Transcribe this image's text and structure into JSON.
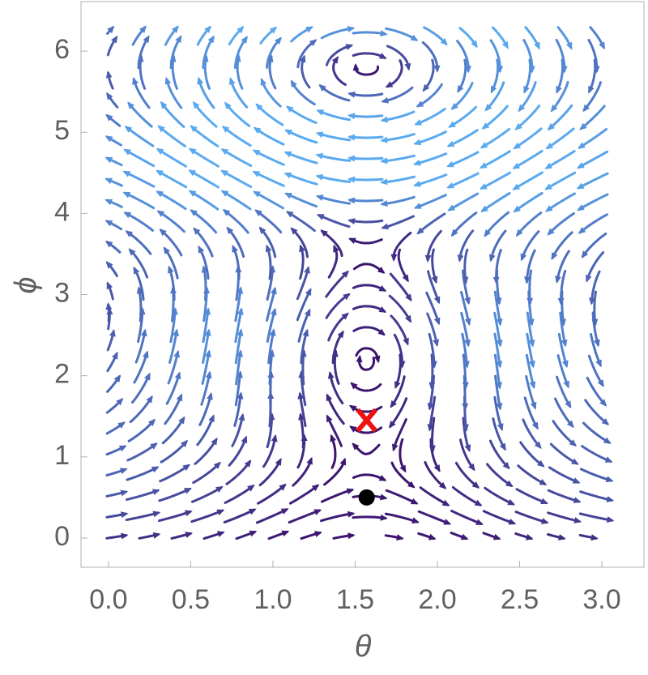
{
  "chart_data": {
    "type": "streamplot",
    "x_label": "θ",
    "y_label": "ϕ",
    "xlim": [
      -0.167,
      3.256
    ],
    "ylim": [
      -0.36,
      6.61
    ],
    "xticks": [
      {
        "value": 0,
        "label": "0.0"
      },
      {
        "value": 0.5,
        "label": "0.5"
      },
      {
        "value": 1,
        "label": "1.0"
      },
      {
        "value": 1.5,
        "label": "1.5"
      },
      {
        "value": 2,
        "label": "2.0"
      },
      {
        "value": 2.5,
        "label": "2.5"
      },
      {
        "value": 3,
        "label": "3.0"
      }
    ],
    "yticks": [
      0,
      1,
      2,
      3,
      4,
      5,
      6
    ],
    "field_xrange": [
      0,
      3.1416
    ],
    "field_yrange": [
      0,
      6.2832
    ],
    "vortices": [
      {
        "theta": 1.57,
        "phi": 2.45
      },
      {
        "theta": 1.57,
        "phi": 5.8
      }
    ],
    "points": [
      {
        "theta": 1.57,
        "phi": 1.45,
        "color": "#ee1111",
        "marker": "x"
      },
      {
        "theta": 1.57,
        "phi": 0.5,
        "color": "#000000",
        "marker": "dot"
      }
    ]
  }
}
